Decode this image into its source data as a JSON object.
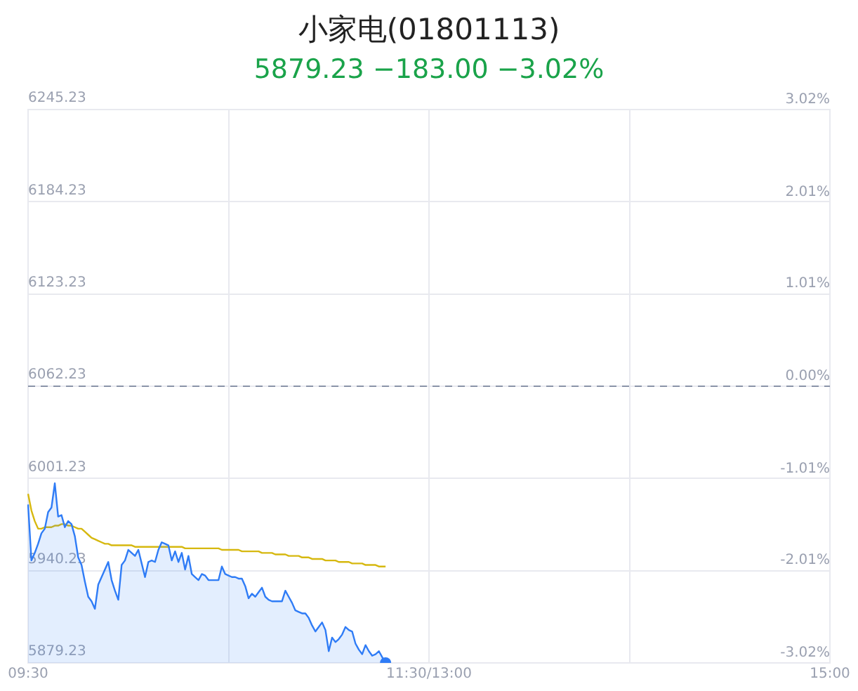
{
  "chart_data": {
    "type": "line",
    "title": "小家电(01801113)",
    "subtitle": "5879.23 −183.00 −3.02%",
    "categories": [
      "09:30",
      null,
      null,
      null,
      null,
      null,
      null,
      null,
      null,
      null,
      null,
      null,
      null,
      null,
      null,
      null,
      null,
      null,
      null,
      null,
      null,
      null,
      null,
      null,
      null,
      null,
      null,
      null,
      null,
      null,
      null,
      null,
      null,
      null,
      null,
      null,
      null,
      null,
      null,
      null,
      null,
      null,
      null,
      null,
      null,
      null,
      null,
      null,
      null,
      null,
      null,
      null,
      null,
      null,
      null,
      null,
      null,
      null,
      null,
      null,
      null,
      null,
      null,
      null,
      null,
      null,
      null,
      null,
      null,
      null,
      null,
      null,
      null,
      null,
      null,
      null,
      null,
      null,
      null,
      null,
      null,
      null,
      null,
      null,
      null,
      null,
      null,
      null,
      null,
      null,
      null,
      null,
      null,
      null,
      null,
      null,
      null,
      null,
      null,
      null,
      null,
      null,
      null,
      null,
      null,
      null,
      null,
      null,
      null,
      null,
      null,
      null,
      null,
      null,
      null,
      null,
      null,
      null,
      null,
      null,
      "11:30/13:00",
      null,
      null,
      null,
      null,
      null,
      null,
      null,
      null,
      null,
      null,
      null,
      null,
      null,
      null,
      null,
      null,
      null,
      null,
      null,
      null,
      null,
      null,
      null,
      null,
      null,
      null,
      null,
      null,
      null,
      null,
      null,
      null,
      null,
      null,
      null,
      null,
      null,
      null,
      null,
      null,
      null,
      null,
      null,
      null,
      null,
      null,
      null,
      null,
      null,
      null,
      null,
      null,
      null,
      null,
      null,
      null,
      null,
      null,
      null,
      null,
      null,
      null,
      null,
      null,
      null,
      null,
      null,
      null,
      null,
      null,
      null,
      null,
      null,
      null,
      null,
      null,
      null,
      null,
      null,
      null,
      null,
      null,
      null,
      null,
      null,
      null,
      null,
      null,
      null,
      null,
      null,
      null,
      null,
      null,
      null,
      null,
      null,
      null,
      null,
      null,
      null,
      null,
      null,
      null,
      null,
      null,
      null,
      null,
      null,
      null,
      null,
      null,
      null,
      null,
      null,
      null,
      null,
      null,
      null,
      "15:00"
    ],
    "ylim": [
      5879.23,
      6245.23
    ],
    "yticks": [
      5879.23,
      5940.23,
      6001.23,
      6062.23,
      6123.23,
      6184.23,
      6245.23
    ],
    "y2lim": [
      -3.02,
      3.02
    ],
    "y2ticks": [
      {
        "value": -3.02,
        "label": "-3.02%"
      },
      {
        "value": -2.01,
        "label": "-2.01%"
      },
      {
        "value": -1.01,
        "label": "-1.01%"
      },
      {
        "value": 0,
        "label": "0.00%"
      },
      {
        "value": 1.01,
        "label": "1.01%"
      },
      {
        "value": 2.01,
        "label": "2.01%"
      },
      {
        "value": 3.02,
        "label": "3.02%"
      }
    ],
    "grid": true,
    "legend": false,
    "marker": "none",
    "ref_lines": [
      {
        "axis": "y",
        "value": 6062.23,
        "color": "#8a93a8",
        "line_style": "dashed"
      }
    ],
    "series": [
      {
        "type": "area",
        "color": "#2f7cf6",
        "values": [
          5984,
          5947,
          5952,
          5958,
          5965,
          5968,
          5979,
          5982,
          5998,
          5976,
          5977,
          5969,
          5973,
          5971,
          5963,
          5949,
          5944,
          5933,
          5923,
          5920,
          5915,
          5931,
          5936,
          5941,
          5946,
          5934,
          5927,
          5921,
          5944,
          5947,
          5954,
          5952,
          5950,
          5954,
          5945,
          5936,
          5946,
          5947,
          5946,
          5954,
          5959,
          5958,
          5957,
          5947,
          5953,
          5946,
          5952,
          5941,
          5950,
          5938,
          5936,
          5934,
          5938,
          5937,
          5934,
          5934,
          5934,
          5934,
          5943,
          5938,
          5937,
          5936,
          5936,
          5935,
          5935,
          5930,
          5922,
          5925,
          5923,
          5926,
          5929,
          5923,
          5921,
          5920,
          5920,
          5920,
          5920,
          5927,
          5923,
          5919,
          5914,
          5913,
          5912,
          5912,
          5909,
          5904,
          5900,
          5903,
          5906,
          5901,
          5887,
          5896,
          5893,
          5895,
          5898,
          5903,
          5901,
          5900,
          5892,
          5888,
          5885,
          5891,
          5887,
          5884,
          5885,
          5887,
          5883,
          5879.23,
          null,
          null,
          null,
          null,
          null,
          null,
          null,
          null,
          null,
          null,
          null,
          null,
          null,
          null,
          null,
          null,
          null,
          null,
          null,
          null,
          null,
          null,
          null,
          null,
          null,
          null,
          null,
          null,
          null,
          null,
          null,
          null,
          null,
          null,
          null,
          null,
          null,
          null,
          null,
          null,
          null,
          null,
          null,
          null,
          null,
          null,
          null,
          null,
          null,
          null,
          null,
          null,
          null,
          null,
          null,
          null,
          null,
          null,
          null,
          null,
          null,
          null,
          null,
          null,
          null,
          null,
          null,
          null,
          null,
          null,
          null,
          null,
          null,
          null,
          null,
          null,
          null,
          null,
          null,
          null,
          null,
          null,
          null,
          null,
          null,
          null,
          null,
          null,
          null,
          null,
          null,
          null,
          null,
          null,
          null,
          null,
          null,
          null,
          null,
          null,
          null,
          null,
          null,
          null,
          null,
          null,
          null,
          null,
          null,
          null,
          null,
          null,
          null,
          null,
          null,
          null,
          null,
          null,
          null,
          null,
          null,
          null,
          null,
          null,
          null,
          null,
          null,
          null,
          null,
          null,
          null,
          null,
          null
        ]
      },
      {
        "type": "line",
        "color": "#d6b80f",
        "values": [
          5991,
          5980,
          5973,
          5968,
          5968,
          5969,
          5969,
          5969,
          5970,
          5970,
          5971,
          5971,
          5970,
          5970,
          5969,
          5968,
          5968,
          5966,
          5964,
          5962,
          5961,
          5960,
          5959,
          5958,
          5958,
          5957,
          5957,
          5957,
          5957,
          5957,
          5957,
          5957,
          5956,
          5956,
          5956,
          5956,
          5956,
          5956,
          5956,
          5956,
          5956,
          5956,
          5956,
          5956,
          5956,
          5956,
          5956,
          5955,
          5955,
          5955,
          5955,
          5955,
          5955,
          5955,
          5955,
          5955,
          5955,
          5955,
          5954,
          5954,
          5954,
          5954,
          5954,
          5954,
          5953,
          5953,
          5953,
          5953,
          5953,
          5953,
          5952,
          5952,
          5952,
          5952,
          5951,
          5951,
          5951,
          5951,
          5950,
          5950,
          5950,
          5950,
          5949,
          5949,
          5949,
          5948,
          5948,
          5948,
          5948,
          5947,
          5947,
          5947,
          5947,
          5946,
          5946,
          5946,
          5946,
          5945,
          5945,
          5945,
          5945,
          5944,
          5944,
          5944,
          5944,
          5943,
          5943,
          5943,
          null,
          null,
          null,
          null,
          null,
          null,
          null,
          null,
          null,
          null,
          null,
          null,
          null,
          null,
          null,
          null,
          null,
          null,
          null,
          null,
          null,
          null,
          null,
          null,
          null,
          null,
          null,
          null,
          null,
          null,
          null,
          null,
          null,
          null,
          null,
          null,
          null,
          null,
          null,
          null,
          null,
          null,
          null,
          null,
          null,
          null,
          null,
          null,
          null,
          null,
          null,
          null,
          null,
          null,
          null,
          null,
          null,
          null,
          null,
          null,
          null,
          null,
          null,
          null,
          null,
          null,
          null,
          null,
          null,
          null,
          null,
          null,
          null,
          null,
          null,
          null,
          null,
          null,
          null,
          null,
          null,
          null,
          null,
          null,
          null,
          null,
          null,
          null,
          null,
          null,
          null,
          null,
          null,
          null,
          null,
          null,
          null,
          null,
          null,
          null,
          null,
          null,
          null,
          null,
          null,
          null,
          null,
          null,
          null,
          null,
          null,
          null,
          null,
          null,
          null,
          null,
          null,
          null,
          null,
          null,
          null,
          null,
          null,
          null,
          null,
          null,
          null,
          null,
          null,
          null,
          null,
          null,
          null
        ]
      }
    ]
  }
}
